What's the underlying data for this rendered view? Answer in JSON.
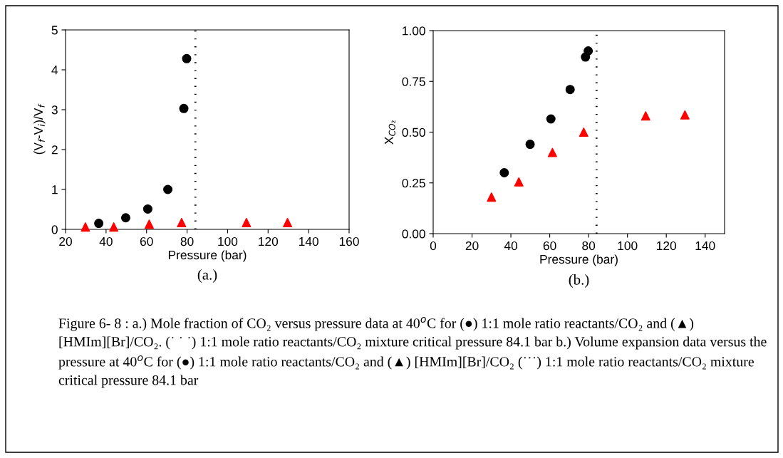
{
  "chart_data": [
    {
      "type": "scatter",
      "xlabel": "Pressure (bar)",
      "ylabel": "(V$_{f}$-V$_{i}$)/V$_{f}$",
      "series": [
        {
          "color": "#000000",
          "marker": "circle",
          "x": [
            36.4,
            49.7,
            60.6,
            70.5,
            78.4,
            79.8
          ],
          "values": [
            0.15,
            0.29,
            0.51,
            1.0,
            3.03,
            4.28
          ]
        },
        {
          "color": "#ff0000",
          "marker": "triangle",
          "x": [
            29.8,
            43.8,
            61.3,
            77.3,
            109.3,
            129.6
          ],
          "values": [
            0.06,
            0.06,
            0.13,
            0.17,
            0.17,
            0.17
          ]
        }
      ],
      "ref_lines": [
        {
          "axis": "x",
          "value": 84.1,
          "color": "#000000",
          "line_style": "dotted"
        }
      ],
      "xlim": [
        20,
        160
      ],
      "xticks": [
        20,
        40,
        60,
        80,
        100,
        120,
        140,
        160
      ],
      "ylim": [
        0,
        5
      ],
      "yticks": [
        0,
        1,
        2,
        3,
        4,
        5
      ],
      "grid": false,
      "annotations": [
        "(a.)"
      ]
    },
    {
      "type": "scatter",
      "xlabel": "Pressure (bar)",
      "ylabel": "X$_{CO₂}$",
      "series": [
        {
          "color": "#000000",
          "marker": "circle",
          "x": [
            36.6,
            49.9,
            60.6,
            70.5,
            78.4,
            79.8
          ],
          "values": [
            0.3,
            0.44,
            0.565,
            0.71,
            0.87,
            0.9
          ]
        },
        {
          "color": "#ff0000",
          "marker": "triangle",
          "x": [
            30.0,
            44.1,
            61.4,
            77.5,
            109.4,
            129.6
          ],
          "values": [
            0.18,
            0.255,
            0.4,
            0.5,
            0.58,
            0.585
          ]
        }
      ],
      "ref_lines": [
        {
          "axis": "x",
          "value": 84.1,
          "color": "#000000",
          "line_style": "dotted"
        }
      ],
      "xlim": [
        0,
        150
      ],
      "xticks": [
        0,
        20,
        40,
        60,
        80,
        100,
        120,
        140
      ],
      "ylim": [
        0,
        1
      ],
      "yticks": [
        {
          "value": 0,
          "label": "0.00"
        },
        {
          "value": 0.25,
          "label": "0.25"
        },
        {
          "value": 0.5,
          "label": "0.50"
        },
        {
          "value": 0.75,
          "label": "0.75"
        },
        {
          "value": 1,
          "label": "1.00"
        }
      ],
      "grid": false,
      "annotations": [
        "(b.)",
        "Figure 6- 8 : a.) Mole fraction of CO₂ versus pressure data at 40$^{o}$C for (●) 1:1 mole ratio reactants/CO₂ and (▲) [HMIm][Br]/CO₂. (˙ ˙ ˙) 1:1 mole ratio reactants/CO₂ mixture critical pressure 84.1 bar b.) Volume expansion data versus the pressure at 40$^{o}$C for (●) 1:1 mole ratio reactants/CO₂ and (▲) [HMIm][Br]/CO₂ (˙˙˙) 1:1 mole ratio reactants/CO₂ mixture critical pressure 84.1 bar"
      ]
    }
  ]
}
